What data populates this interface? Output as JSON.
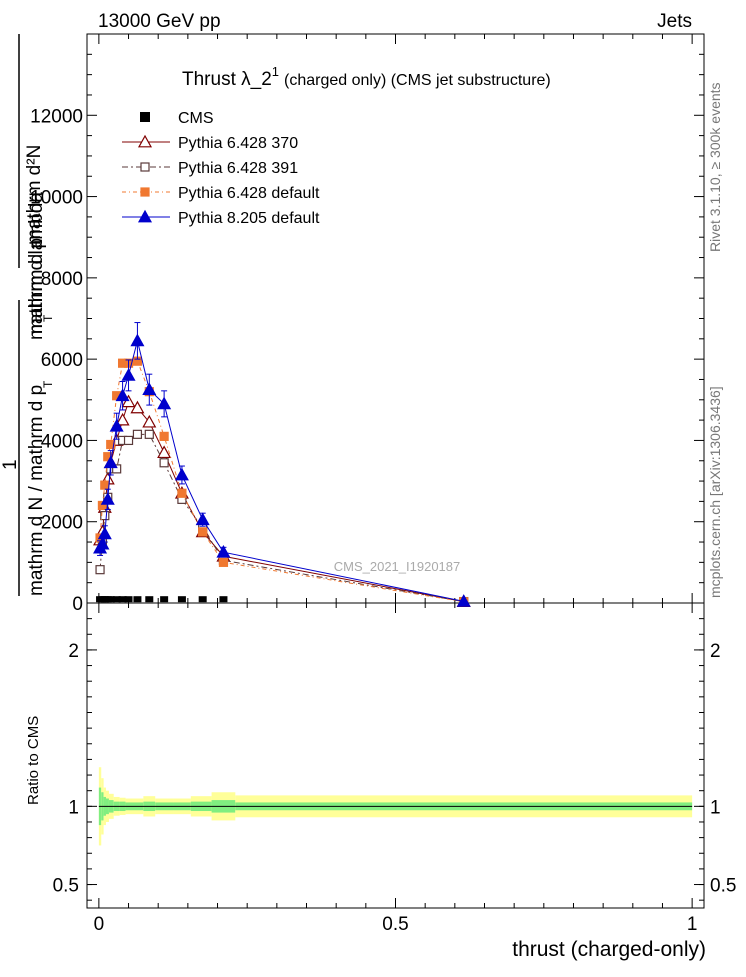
{
  "header": {
    "left": "13000 GeV pp",
    "right": "Jets"
  },
  "side": {
    "rivet": "Rivet 3.1.10, ≥ 300k events",
    "mcplots": "mcplots.cern.ch [arXiv:1306.3436]"
  },
  "colors": {
    "cms": "#000000",
    "p370": "#800000",
    "p391": "#5a3a3a",
    "pdef": "#f07830",
    "p8": "#0000cc",
    "band_inner": "#80ee80",
    "band_outer": "#ffff99"
  },
  "chart_data": {
    "type": "line",
    "title_main": "Thrust λ_2",
    "title_sup": "1",
    "title_sub": "(charged only) (CMS jet substructure)",
    "ylabel_top_num": "mathrm d²N",
    "ylabel_top_den1": "mathrm d p",
    "ylabel_top_den_sub": "T",
    "ylabel_top_den2": "mathrm d lambda",
    "ylabel_one": "1",
    "ylabel_bottom": "mathrm d N / mathrm d p",
    "ylabel_bottom_sub": "T",
    "watermark": "CMS_2021_I1920187",
    "xlabel": "thrust (charged-only)",
    "ratio_label": "Ratio to CMS",
    "xlim": [
      -0.02,
      1.02
    ],
    "ylim": [
      0,
      14000
    ],
    "ratio_ylim": [
      0.35,
      2.3
    ],
    "x_ticks": [
      0,
      0.5,
      1
    ],
    "x_tick_labels": [
      "0",
      "0.5",
      "1"
    ],
    "y_ticks": [
      0,
      2000,
      4000,
      6000,
      8000,
      10000,
      12000
    ],
    "y_tick_labels": [
      "0",
      "2000",
      "4000",
      "6000",
      "8000",
      "10000",
      "12000"
    ],
    "ratio_ticks": [
      0.5,
      1,
      2
    ],
    "ratio_tick_labels": [
      "0.5",
      "1",
      "2"
    ],
    "legend": [
      "CMS",
      "Pythia 6.428 370",
      "Pythia 6.428 391",
      "Pythia 6.428 default",
      "Pythia 8.205 default"
    ],
    "x": [
      0.002,
      0.006,
      0.01,
      0.015,
      0.02,
      0.03,
      0.04,
      0.05,
      0.065,
      0.085,
      0.11,
      0.14,
      0.175,
      0.21,
      0.615
    ],
    "series": [
      {
        "name": "CMS",
        "values": [
          20,
          20,
          20,
          20,
          20,
          20,
          20,
          20,
          20,
          20,
          20,
          20,
          20,
          20,
          0
        ]
      },
      {
        "name": "Pythia 6.428 370",
        "values": [
          1550,
          1750,
          2350,
          3050,
          3450,
          4000,
          4500,
          4950,
          4800,
          4450,
          3700,
          2700,
          1750,
          1150,
          35
        ]
      },
      {
        "name": "Pythia 6.428 391",
        "values": [
          820,
          1550,
          2150,
          2600,
          3300,
          3300,
          4000,
          4000,
          4150,
          4150,
          3450,
          2550,
          1850,
          1050,
          35
        ]
      },
      {
        "name": "Pythia 6.428 default",
        "values": [
          1600,
          2400,
          2900,
          3600,
          3900,
          5100,
          5900,
          5900,
          5950,
          5200,
          4100,
          2700,
          1750,
          1000,
          30
        ]
      },
      {
        "name": "Pythia 8.205 default",
        "values": [
          1350,
          1450,
          1700,
          2550,
          3450,
          4350,
          5100,
          5600,
          6450,
          5250,
          4900,
          3150,
          2050,
          1250,
          40
        ]
      }
    ],
    "errors": [
      {
        "name": "Pythia 8.205 default",
        "values": [
          180,
          180,
          200,
          250,
          300,
          320,
          350,
          380,
          450,
          380,
          320,
          220,
          160,
          120,
          20
        ]
      }
    ],
    "ratio_bands": {
      "edges": [
        0,
        0.004,
        0.008,
        0.012,
        0.017,
        0.025,
        0.035,
        0.045,
        0.055,
        0.075,
        0.095,
        0.125,
        0.155,
        0.19,
        0.23,
        1.0
      ],
      "inner": [
        0.12,
        0.09,
        0.06,
        0.05,
        0.04,
        0.03,
        0.03,
        0.025,
        0.025,
        0.03,
        0.025,
        0.025,
        0.03,
        0.04,
        0.025
      ],
      "outer": [
        0.25,
        0.18,
        0.12,
        0.1,
        0.08,
        0.06,
        0.055,
        0.05,
        0.05,
        0.065,
        0.05,
        0.05,
        0.065,
        0.09,
        0.07
      ]
    }
  }
}
